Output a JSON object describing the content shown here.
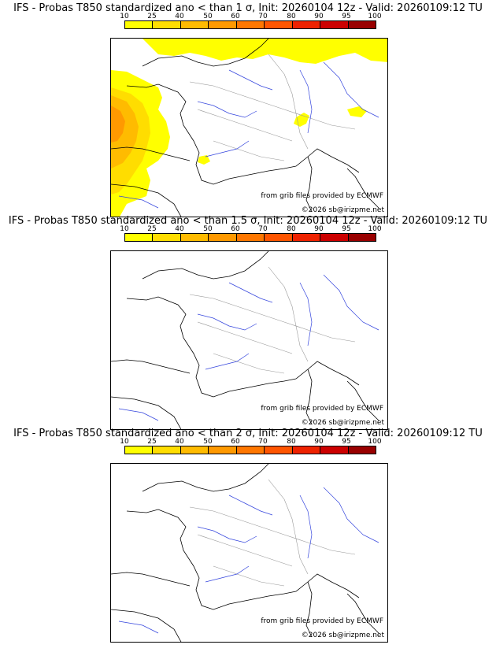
{
  "legend": {
    "ticks": [
      "10",
      "25",
      "40",
      "50",
      "60",
      "70",
      "80",
      "90",
      "95",
      "100"
    ],
    "colors": [
      "#ffff00",
      "#ffdd00",
      "#ffbb00",
      "#ff9900",
      "#ff7700",
      "#ff5500",
      "#ee2200",
      "#cc0000",
      "#990000",
      "#660000"
    ]
  },
  "panels": [
    {
      "title": "IFS - Probas T850  standardized ano < than 1 σ, Init: 20260104 12z - Valid: 20260109:12 TU",
      "credit_line1": "from grib files provided by ECMWF",
      "credit_line2": "©2026 sb@irizpme.net",
      "has_probability_fill": true
    },
    {
      "title": "IFS - Probas T850  standardized ano < than 1.5 σ, Init: 20260104 12z - Valid: 20260109:12 TU",
      "credit_line1": "from grib files provided by ECMWF",
      "credit_line2": "©2026 sb@irizpme.net",
      "has_probability_fill": false
    },
    {
      "title": "IFS - Probas T850  standardized ano < than 2 σ, Init: 20260104 12z - Valid: 20260109:12 TU",
      "credit_line1": "from grib files provided by ECMWF",
      "credit_line2": "©2026 sb@irizpme.net",
      "has_probability_fill": false
    }
  ]
}
